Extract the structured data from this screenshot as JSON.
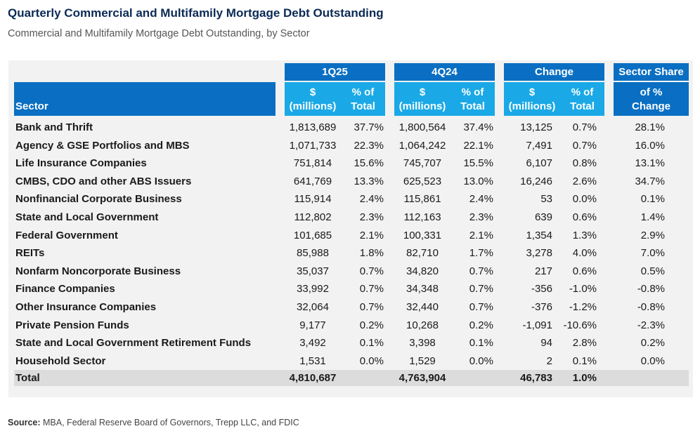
{
  "title": "Quarterly Commercial and Multifamily Mortgage Debt Outstanding",
  "subtitle": "Commercial and Multifamily Mortgage Debt Outstanding, by Sector",
  "header": {
    "groups": [
      "1Q25",
      "4Q24",
      "Change",
      "Sector Share"
    ],
    "sector": "Sector",
    "dollar_label_1": "$",
    "dollar_label_2": "(millions)",
    "pct_label_1": "% of",
    "pct_label_2": "Total",
    "share_label_1": "of %",
    "share_label_2": "Change"
  },
  "rows": [
    [
      "Bank and Thrift",
      "1,813,689",
      "37.7%",
      "1,800,564",
      "37.4%",
      "13,125",
      "0.7%",
      "28.1%"
    ],
    [
      "Agency & GSE Portfolios and MBS",
      "1,071,733",
      "22.3%",
      "1,064,242",
      "22.1%",
      "7,491",
      "0.7%",
      "16.0%"
    ],
    [
      "Life Insurance Companies",
      "751,814",
      "15.6%",
      "745,707",
      "15.5%",
      "6,107",
      "0.8%",
      "13.1%"
    ],
    [
      "CMBS, CDO and other ABS Issuers",
      "641,769",
      "13.3%",
      "625,523",
      "13.0%",
      "16,246",
      "2.6%",
      "34.7%"
    ],
    [
      "Nonfinancial Corporate Business",
      "115,914",
      "2.4%",
      "115,861",
      "2.4%",
      "53",
      "0.0%",
      "0.1%"
    ],
    [
      "State and Local Government",
      "112,802",
      "2.3%",
      "112,163",
      "2.3%",
      "639",
      "0.6%",
      "1.4%"
    ],
    [
      "Federal Government",
      "101,685",
      "2.1%",
      "100,331",
      "2.1%",
      "1,354",
      "1.3%",
      "2.9%"
    ],
    [
      "REITs",
      "85,988",
      "1.8%",
      "82,710",
      "1.7%",
      "3,278",
      "4.0%",
      "7.0%"
    ],
    [
      "Nonfarm Noncorporate Business",
      "35,037",
      "0.7%",
      "34,820",
      "0.7%",
      "217",
      "0.6%",
      "0.5%"
    ],
    [
      "Finance Companies",
      "33,992",
      "0.7%",
      "34,348",
      "0.7%",
      "-356",
      "-1.0%",
      "-0.8%"
    ],
    [
      "Other Insurance Companies",
      "32,064",
      "0.7%",
      "32,440",
      "0.7%",
      "-376",
      "-1.2%",
      "-0.8%"
    ],
    [
      "Private Pension Funds",
      "9,177",
      "0.2%",
      "10,268",
      "0.2%",
      "-1,091",
      "-10.6%",
      "-2.3%"
    ],
    [
      "State and Local Government Retirement Funds",
      "3,492",
      "0.1%",
      "3,398",
      "0.1%",
      "94",
      "2.8%",
      "0.2%"
    ],
    [
      "Household Sector",
      "1,531",
      "0.0%",
      "1,529",
      "0.0%",
      "2",
      "0.1%",
      "0.0%"
    ]
  ],
  "total": [
    "Total",
    "4,810,687",
    "",
    "4,763,904",
    "",
    "46,783",
    "1.0%",
    ""
  ],
  "source": {
    "label": "Source:",
    "text": " MBA, Federal Reserve Board of Governors, Trepp LLC, and FDIC"
  },
  "colors": {
    "header_dark": "#0a6fc2",
    "header_light": "#1aa9e6",
    "title": "#0a2a55",
    "total_row": "#dcdcdc"
  }
}
